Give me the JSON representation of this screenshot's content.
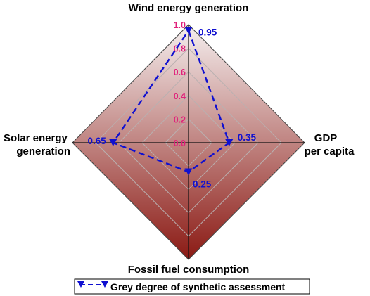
{
  "chart_data": {
    "type": "radar",
    "axes": [
      "Wind energy generation",
      "GDP per capita",
      "Fossil fuel consumption",
      "Solar energy generation"
    ],
    "axis_titles": {
      "top": [
        "Wind energy generation"
      ],
      "right": [
        "GDP",
        "per capita"
      ],
      "bottom": [
        "Fossil fuel consumption"
      ],
      "left": [
        "Solar energy",
        "generation"
      ]
    },
    "r_ticks": [
      "0.0",
      "0.2",
      "0.4",
      "0.6",
      "0.8",
      "1.0"
    ],
    "r_range": [
      0,
      1
    ],
    "series": [
      {
        "name": "Grey degree of synthetic assessment",
        "values": [
          0.95,
          0.35,
          0.25,
          0.65
        ],
        "labels": [
          "0.95",
          "0.35",
          "0.25",
          "0.65"
        ]
      }
    ],
    "legend_position": "bottom",
    "colors": {
      "series": "#1010d0",
      "tick_labels": "#e0207a",
      "fill_top": "#f5efef",
      "fill_bottom": "#8b1a14",
      "grid": "#b9b0b0"
    }
  }
}
